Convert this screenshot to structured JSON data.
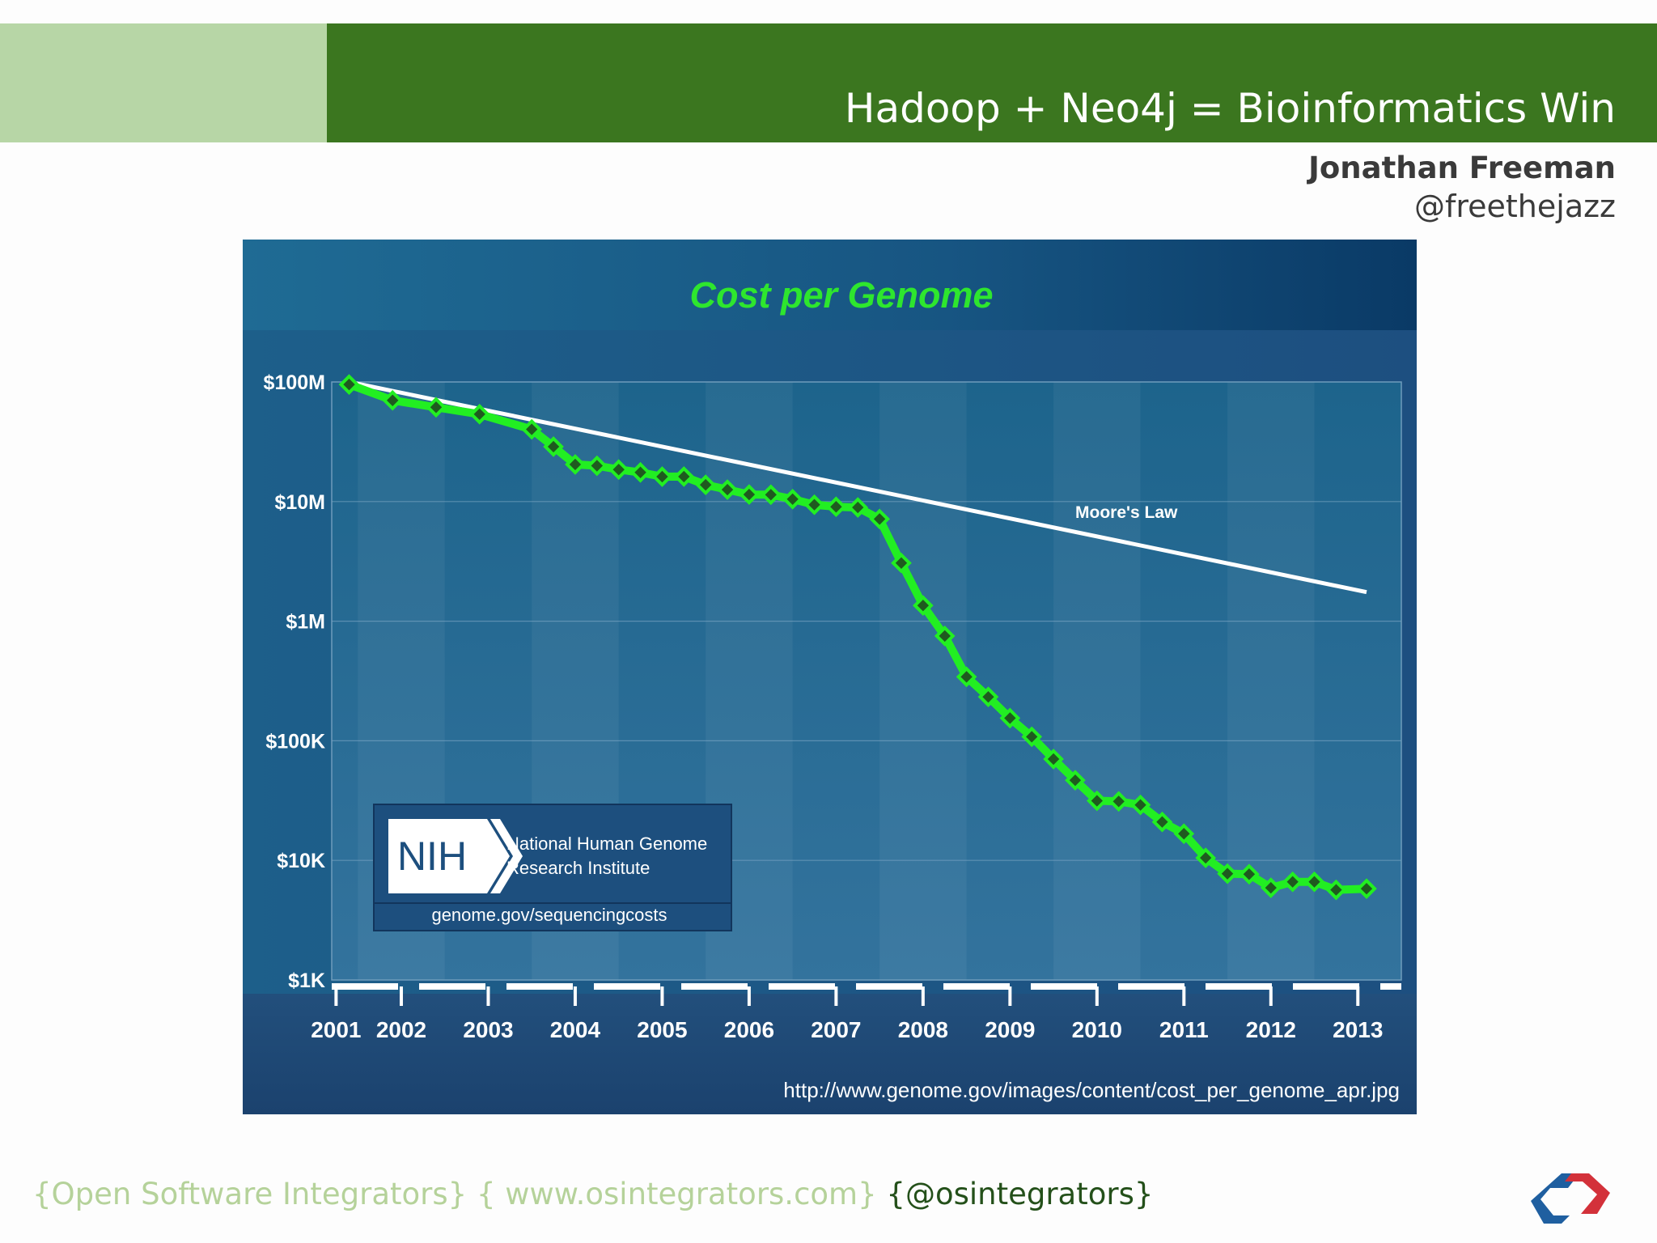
{
  "slide": {
    "title": "Hadoop + Neo4j = Bioinformatics Win",
    "author_name": "Jonathan Freeman",
    "author_handle": "@freethejazz"
  },
  "footer": {
    "company": "{Open Software Integrators}",
    "website": "{ www.osintegrators.com}",
    "twitter": "{@osintegrators}"
  },
  "logo": {
    "icon": "osi-logo-icon",
    "colors": [
      "#1f5fa0",
      "#d3313a"
    ]
  },
  "nih": {
    "abbr": "NIH",
    "line1": "National Human Genome",
    "line2": "Research Institute",
    "url": "genome.gov/sequencingcosts"
  },
  "source_url": "http://www.genome.gov/images/content/cost_per_genome_apr.jpg",
  "colors": {
    "header_dark": "#3b761f",
    "header_light": "#b7d6a6",
    "chart_title": "#2ee62e",
    "series_line": "#22ee22",
    "marker_fill": "#1f5a1f",
    "moore_line": "#ffffff"
  },
  "chart_data": {
    "type": "line",
    "title": "Cost per Genome",
    "yscale": "log",
    "ylim": [
      1000,
      100000000
    ],
    "y_ticks": [
      {
        "value": 100000000,
        "label": "$100M"
      },
      {
        "value": 10000000,
        "label": "$10M"
      },
      {
        "value": 1000000,
        "label": "$1M"
      },
      {
        "value": 100000,
        "label": "$100K"
      },
      {
        "value": 10000,
        "label": "$10K"
      },
      {
        "value": 1000,
        "label": "$1K"
      }
    ],
    "xlim": [
      2001.7,
      2014.0
    ],
    "x_ticks": [
      {
        "value": 2001.75,
        "label": "2001"
      },
      {
        "value": 2002.5,
        "label": "2002"
      },
      {
        "value": 2003.5,
        "label": "2003"
      },
      {
        "value": 2004.5,
        "label": "2004"
      },
      {
        "value": 2005.5,
        "label": "2005"
      },
      {
        "value": 2006.5,
        "label": "2006"
      },
      {
        "value": 2007.5,
        "label": "2007"
      },
      {
        "value": 2008.5,
        "label": "2008"
      },
      {
        "value": 2009.5,
        "label": "2009"
      },
      {
        "value": 2010.5,
        "label": "2010"
      },
      {
        "value": 2011.5,
        "label": "2011"
      },
      {
        "value": 2012.5,
        "label": "2012"
      },
      {
        "value": 2013.5,
        "label": "2013"
      }
    ],
    "series": [
      {
        "name": "Cost per Genome",
        "points": [
          [
            2001.9,
            95263072
          ],
          [
            2002.4,
            70175437
          ],
          [
            2002.9,
            61448421
          ],
          [
            2003.4,
            53751684
          ],
          [
            2004.0,
            40157554
          ],
          [
            2004.25,
            28780376
          ],
          [
            2004.5,
            20442576
          ],
          [
            2004.75,
            19934346
          ],
          [
            2005.0,
            18519312
          ],
          [
            2005.25,
            17534970
          ],
          [
            2005.5,
            16159699
          ],
          [
            2005.75,
            16180224
          ],
          [
            2006.0,
            13801124
          ],
          [
            2006.25,
            12585659
          ],
          [
            2006.5,
            11455315
          ],
          [
            2006.75,
            11413884
          ],
          [
            2007.0,
            10474556
          ],
          [
            2007.25,
            9408739
          ],
          [
            2007.5,
            9047003
          ],
          [
            2007.75,
            8927342
          ],
          [
            2008.0,
            7147571
          ],
          [
            2008.25,
            3063820
          ],
          [
            2008.5,
            1352982
          ],
          [
            2008.75,
            752080
          ],
          [
            2009.0,
            342502
          ],
          [
            2009.25,
            232735
          ],
          [
            2009.5,
            154714
          ],
          [
            2009.75,
            108065
          ],
          [
            2010.0,
            70333
          ],
          [
            2010.25,
            46774
          ],
          [
            2010.5,
            31512
          ],
          [
            2010.75,
            31125
          ],
          [
            2011.0,
            29092
          ],
          [
            2011.25,
            20963
          ],
          [
            2011.5,
            16712
          ],
          [
            2011.75,
            10497
          ],
          [
            2012.0,
            7743
          ],
          [
            2012.25,
            7666
          ],
          [
            2012.5,
            5901
          ],
          [
            2012.75,
            6618
          ],
          [
            2013.0,
            6618
          ],
          [
            2013.25,
            5671
          ],
          [
            2013.6,
            5800
          ]
        ]
      },
      {
        "name": "Moore's Law",
        "points": [
          [
            2001.9,
            100000000
          ],
          [
            2013.6,
            1750000
          ]
        ]
      }
    ]
  }
}
